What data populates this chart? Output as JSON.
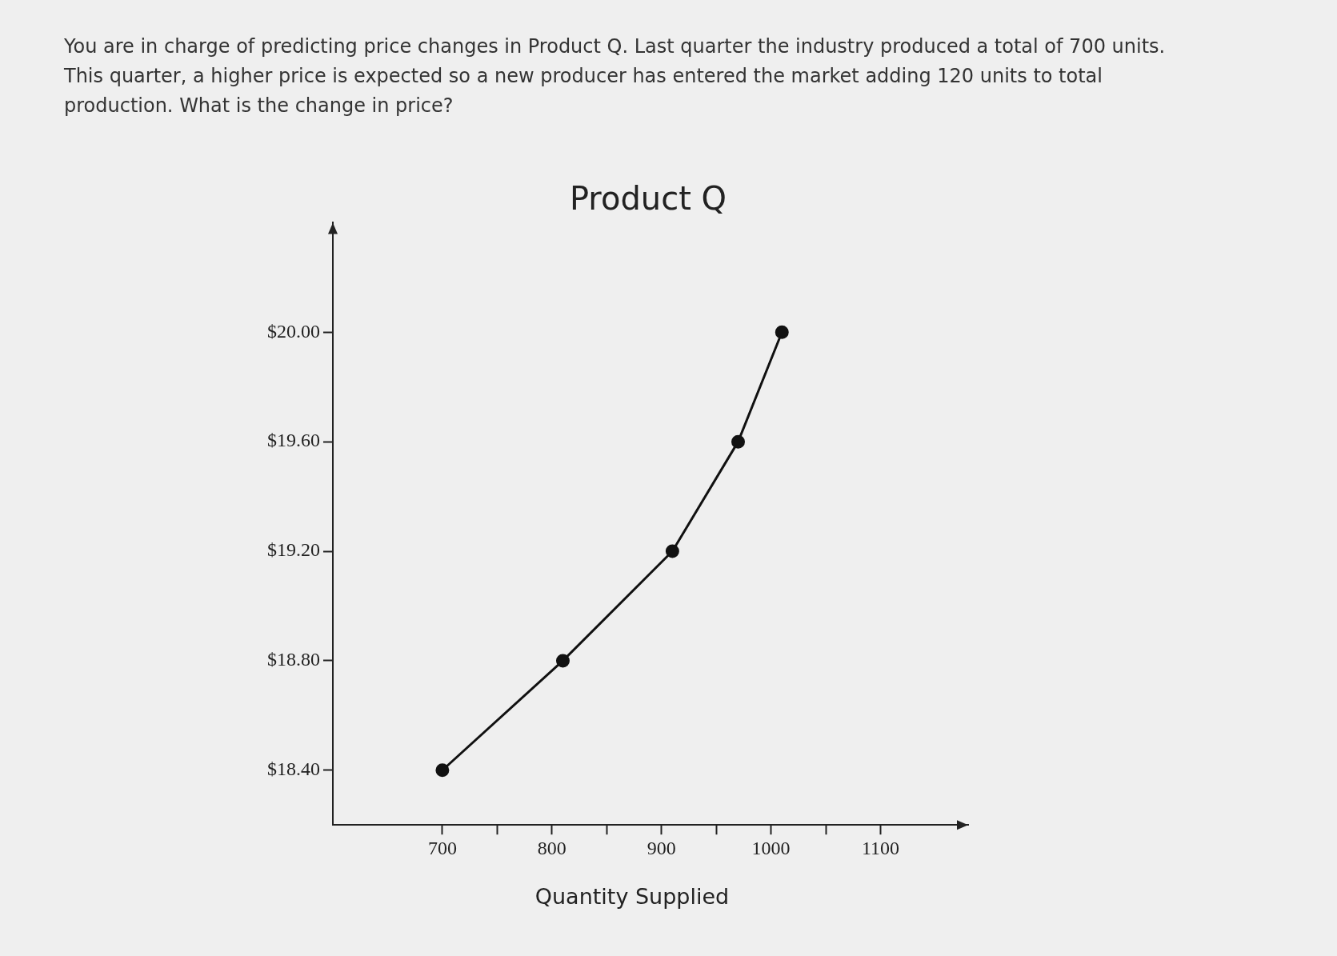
{
  "chart_data": {
    "type": "line",
    "title": "Product Q",
    "xlabel": "Quantity Supplied",
    "annotations": [
      "You are in charge of predicting price changes in Product Q. Last quarter the industry produced a total of 700 units. This quarter, a higher price is expected so a new producer has entered the market adding 120 units to total production. What is the change in price?"
    ],
    "x": [
      700,
      810,
      910,
      970,
      1010
    ],
    "series": [
      {
        "color": "#111111",
        "values": [
          18.4,
          18.8,
          19.2,
          19.6,
          20.0
        ]
      }
    ],
    "xlim": [
      600,
      1180
    ],
    "xticks": [
      700,
      {
        "value": 750,
        "label": null
      },
      800,
      {
        "value": 850,
        "label": null
      },
      900,
      {
        "value": 950,
        "label": null
      },
      1000,
      {
        "value": 1050,
        "label": null
      },
      1100
    ],
    "ylim": [
      18.2,
      20.4
    ],
    "yticks": [
      {
        "value": 18.4,
        "label": "$18.40"
      },
      {
        "value": 18.8,
        "label": "$18.80"
      },
      {
        "value": 19.2,
        "label": "$19.20"
      },
      {
        "value": 19.6,
        "label": "$19.60"
      },
      {
        "value": 20.0,
        "label": "$20.00"
      }
    ],
    "grid": false,
    "legend": false,
    "marker": "circle",
    "line_style": "solid"
  }
}
